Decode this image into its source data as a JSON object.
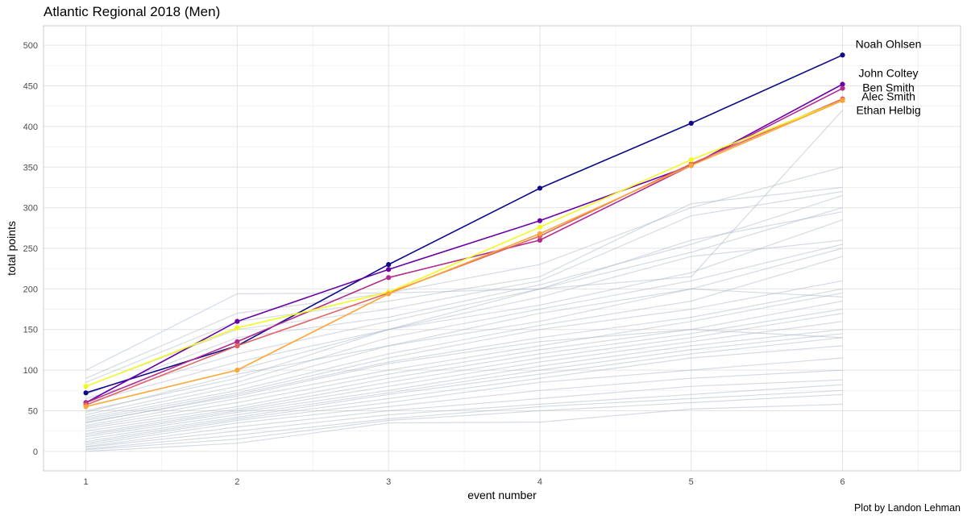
{
  "title": "Atlantic Regional 2018 (Men)",
  "caption": "Plot by Landon Lehman",
  "chart_data": {
    "type": "line",
    "title": "Atlantic Regional 2018 (Men)",
    "xlabel": "event number",
    "ylabel": "total points",
    "xlim": [
      0.72,
      6.78
    ],
    "ylim": [
      -24,
      524
    ],
    "x": [
      1,
      2,
      3,
      4,
      5,
      6
    ],
    "xticks": [
      "1",
      "2",
      "3",
      "4",
      "5",
      "6"
    ],
    "yticks": [
      0,
      50,
      100,
      150,
      200,
      250,
      300,
      350,
      400,
      450,
      500
    ],
    "grid": true,
    "highlight_series": [
      {
        "name": "Noah Ohlsen",
        "color": "#0d0887",
        "values": [
          72,
          130,
          230,
          324,
          404,
          488
        ]
      },
      {
        "name": "John Coltey",
        "color": "#6a00a8",
        "values": [
          60,
          160,
          224,
          284,
          352,
          452
        ]
      },
      {
        "name": "Ben Smith",
        "color": "#b12a90",
        "values": [
          60,
          135,
          214,
          260,
          352,
          447
        ]
      },
      {
        "name": "Alec Smith",
        "color": "#e16462",
        "values": [
          57,
          130,
          195,
          265,
          354,
          434
        ]
      },
      {
        "name": "Ethan Helbig",
        "color": "#f0f921",
        "values": [
          80,
          152,
          196,
          276,
          359,
          432
        ]
      },
      {
        "name": "",
        "color": "#fca636",
        "values": [
          55,
          100,
          194,
          268,
          352,
          432
        ]
      }
    ],
    "background_series_color": "#9fb0c4",
    "background_series": [
      {
        "values": [
          100,
          194,
          195,
          200,
          215,
          420
        ]
      },
      {
        "values": [
          90,
          170,
          195,
          230,
          300,
          350
        ]
      },
      {
        "values": [
          85,
          160,
          185,
          215,
          305,
          325
        ]
      },
      {
        "values": [
          80,
          150,
          175,
          210,
          290,
          320
        ]
      },
      {
        "values": [
          70,
          140,
          165,
          205,
          255,
          315
        ]
      },
      {
        "values": [
          65,
          120,
          160,
          200,
          245,
          300
        ]
      },
      {
        "values": [
          60,
          110,
          150,
          200,
          260,
          295
        ]
      },
      {
        "values": [
          55,
          100,
          150,
          180,
          220,
          285
        ]
      },
      {
        "values": [
          50,
          90,
          150,
          190,
          240,
          260
        ]
      },
      {
        "values": [
          45,
          85,
          140,
          175,
          210,
          255
        ]
      },
      {
        "values": [
          42,
          80,
          130,
          160,
          200,
          250
        ]
      },
      {
        "values": [
          40,
          75,
          120,
          155,
          185,
          240
        ]
      },
      {
        "values": [
          38,
          72,
          115,
          150,
          175,
          210
        ]
      },
      {
        "values": [
          35,
          70,
          110,
          140,
          165,
          200
        ]
      },
      {
        "values": [
          32,
          65,
          100,
          130,
          160,
          195
        ]
      },
      {
        "values": [
          30,
          60,
          95,
          125,
          150,
          185
        ]
      },
      {
        "values": [
          28,
          55,
          90,
          120,
          145,
          175
        ]
      },
      {
        "values": [
          25,
          52,
          85,
          115,
          140,
          170
        ]
      },
      {
        "values": [
          22,
          50,
          80,
          110,
          135,
          160
        ]
      },
      {
        "values": [
          20,
          48,
          75,
          105,
          130,
          150
        ]
      },
      {
        "values": [
          18,
          45,
          72,
          100,
          125,
          145
        ]
      },
      {
        "values": [
          15,
          42,
          70,
          95,
          120,
          140
        ]
      },
      {
        "values": [
          12,
          40,
          65,
          90,
          115,
          130
        ]
      },
      {
        "values": [
          10,
          38,
          60,
          85,
          100,
          115
        ]
      },
      {
        "values": [
          8,
          35,
          55,
          75,
          90,
          100
        ]
      },
      {
        "values": [
          6,
          30,
          50,
          65,
          80,
          88
        ]
      },
      {
        "values": [
          5,
          25,
          45,
          58,
          70,
          82
        ]
      },
      {
        "values": [
          3,
          20,
          40,
          55,
          65,
          75
        ]
      },
      {
        "values": [
          2,
          15,
          38,
          50,
          60,
          70
        ]
      },
      {
        "values": [
          0,
          10,
          35,
          36,
          52,
          58
        ]
      },
      {
        "values": [
          48,
          95,
          130,
          170,
          200,
          190
        ]
      },
      {
        "values": [
          36,
          68,
          108,
          135,
          150,
          140
        ]
      }
    ]
  }
}
